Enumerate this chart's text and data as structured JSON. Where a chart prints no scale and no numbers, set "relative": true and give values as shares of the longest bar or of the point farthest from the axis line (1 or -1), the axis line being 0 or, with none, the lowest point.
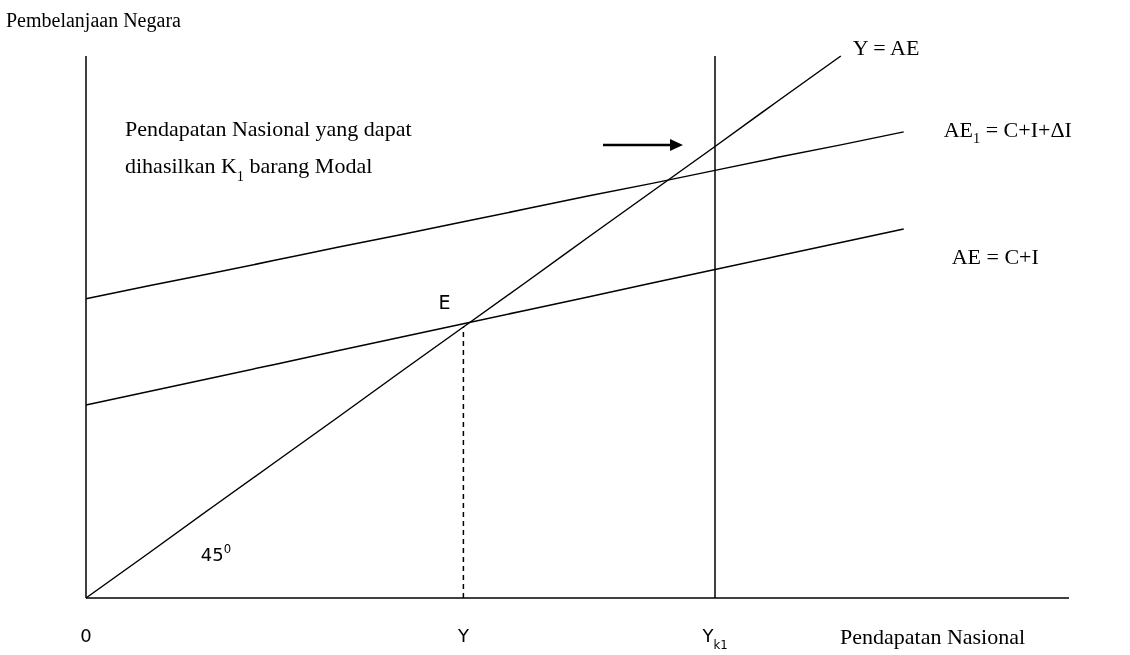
{
  "chart_data": {
    "type": "line",
    "relative": true,
    "ylabel": "Pembelanjaan Negara",
    "xlabel": "Pendapatan Nasional",
    "categories": [
      "0",
      null,
      null,
      null,
      null,
      null,
      "Y",
      null,
      null,
      null,
      "Y$_{k1}$",
      null,
      null,
      null,
      null,
      null
    ],
    "series": [
      {
        "name": "Y = AE",
        "color": "#000000",
        "values": [
          0,
          0.083,
          0.167,
          0.25,
          0.333,
          0.417,
          0.5,
          0.583,
          0.667,
          0.75,
          0.833,
          0.917,
          1,
          null,
          null,
          null
        ]
      },
      {
        "name": "AE$_{1}$ = C+I+ΔI",
        "color": "#000000",
        "values": [
          0.552,
          0.576,
          0.599,
          0.623,
          0.647,
          0.67,
          0.694,
          0.718,
          0.742,
          0.765,
          0.789,
          0.813,
          0.836,
          0.86,
          null,
          null
        ]
      },
      {
        "name": "AE = C+I",
        "color": "#000000",
        "values": [
          0.356,
          0.381,
          0.406,
          0.431,
          0.456,
          0.481,
          0.506,
          0.531,
          0.556,
          0.581,
          0.606,
          0.631,
          0.656,
          0.681,
          null,
          null
        ]
      }
    ],
    "ref_lines": [
      {
        "axis": "x",
        "value": "Y",
        "color": "#000000",
        "line_style": "dashed"
      },
      {
        "axis": "x",
        "value": "Y$_{k1}$",
        "color": "#000000"
      }
    ],
    "annotations": [
      "Pendapatan Nasional yang dapat\ndihasilkan K$_{1}$ barang Modal",
      {
        "text": "E",
        "x": "Y",
        "y": 0.5
      },
      "45$^{0}$"
    ]
  }
}
